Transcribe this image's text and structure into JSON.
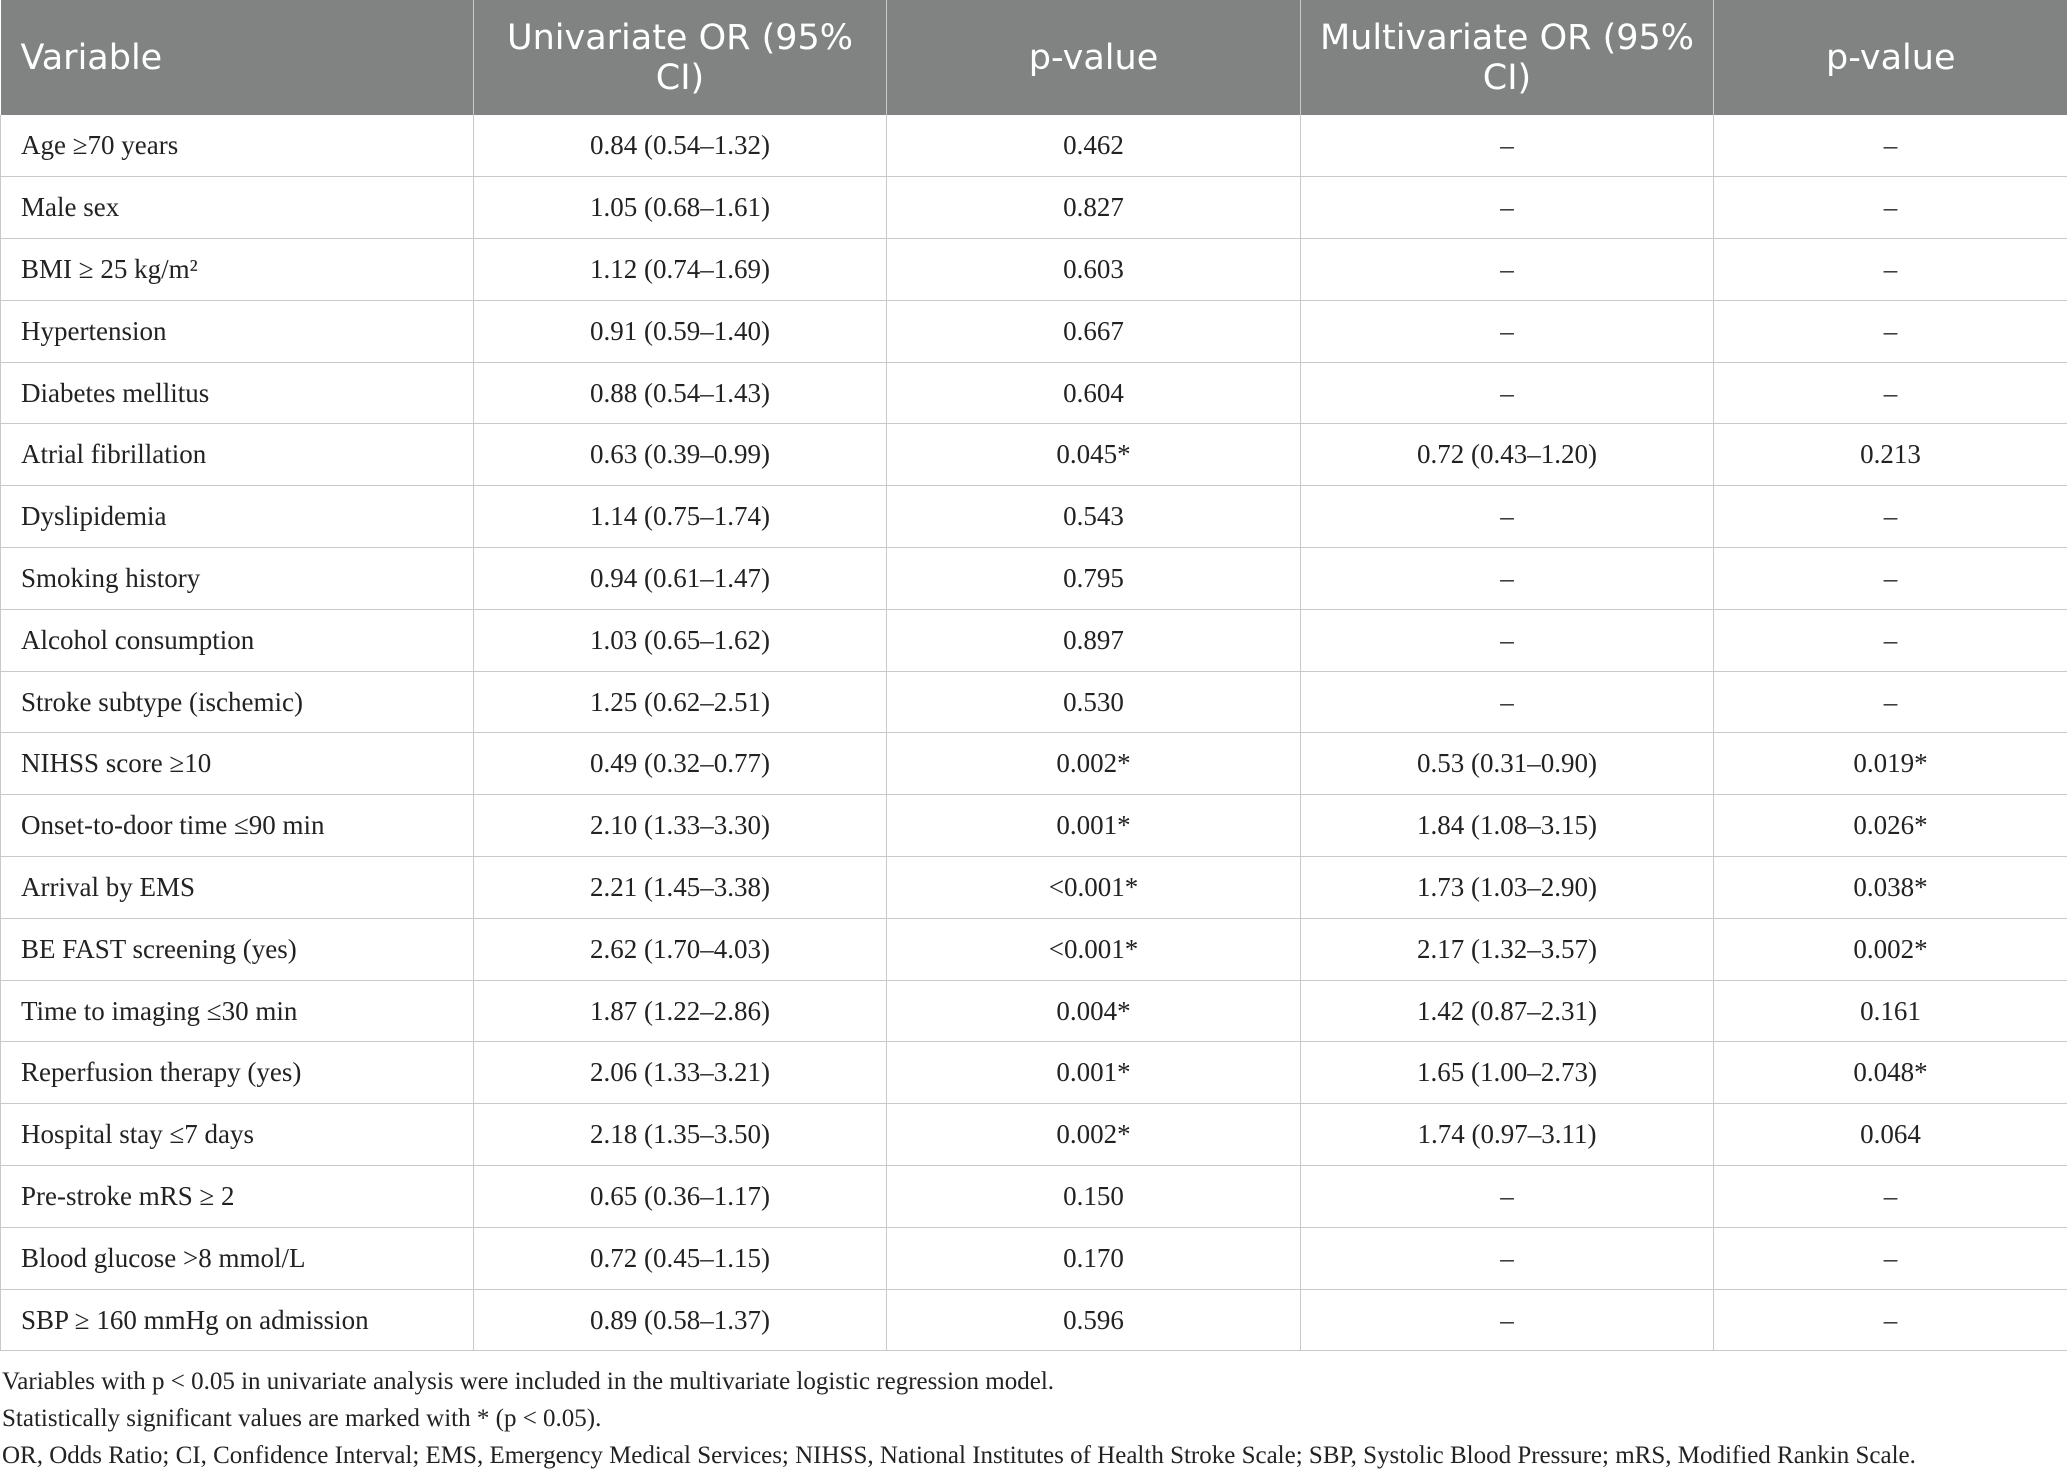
{
  "table": {
    "columns": [
      "Variable",
      "Univariate OR (95% CI)",
      "p-value",
      "Multivariate OR (95% CI)",
      "p-value"
    ],
    "rows": [
      [
        "Age ≥70 years",
        "0.84 (0.54–1.32)",
        "0.462",
        "–",
        "–"
      ],
      [
        "Male sex",
        "1.05 (0.68–1.61)",
        "0.827",
        "–",
        "–"
      ],
      [
        "BMI ≥ 25 kg/m²",
        "1.12 (0.74–1.69)",
        "0.603",
        "–",
        "–"
      ],
      [
        "Hypertension",
        "0.91 (0.59–1.40)",
        "0.667",
        "–",
        "–"
      ],
      [
        "Diabetes mellitus",
        "0.88 (0.54–1.43)",
        "0.604",
        "–",
        "–"
      ],
      [
        "Atrial fibrillation",
        "0.63 (0.39–0.99)",
        "0.045*",
        "0.72 (0.43–1.20)",
        "0.213"
      ],
      [
        "Dyslipidemia",
        "1.14 (0.75–1.74)",
        "0.543",
        "–",
        "–"
      ],
      [
        "Smoking history",
        "0.94 (0.61–1.47)",
        "0.795",
        "–",
        "–"
      ],
      [
        "Alcohol consumption",
        "1.03 (0.65–1.62)",
        "0.897",
        "–",
        "–"
      ],
      [
        "Stroke subtype (ischemic)",
        "1.25 (0.62–2.51)",
        "0.530",
        "–",
        "–"
      ],
      [
        "NIHSS score ≥10",
        "0.49 (0.32–0.77)",
        "0.002*",
        "0.53 (0.31–0.90)",
        "0.019*"
      ],
      [
        "Onset-to-door time ≤90 min",
        "2.10 (1.33–3.30)",
        "0.001*",
        "1.84 (1.08–3.15)",
        "0.026*"
      ],
      [
        "Arrival by EMS",
        "2.21 (1.45–3.38)",
        "<0.001*",
        "1.73 (1.03–2.90)",
        "0.038*"
      ],
      [
        "BE FAST screening (yes)",
        "2.62 (1.70–4.03)",
        "<0.001*",
        "2.17 (1.32–3.57)",
        "0.002*"
      ],
      [
        "Time to imaging ≤30 min",
        "1.87 (1.22–2.86)",
        "0.004*",
        "1.42 (0.87–2.31)",
        "0.161"
      ],
      [
        "Reperfusion therapy (yes)",
        "2.06 (1.33–3.21)",
        "0.001*",
        "1.65 (1.00–2.73)",
        "0.048*"
      ],
      [
        "Hospital stay ≤7 days",
        "2.18 (1.35–3.50)",
        "0.002*",
        "1.74 (0.97–3.11)",
        "0.064"
      ],
      [
        "Pre-stroke mRS ≥ 2",
        "0.65 (0.36–1.17)",
        "0.150",
        "–",
        "–"
      ],
      [
        "Blood glucose >8 mmol/L",
        "0.72 (0.45–1.15)",
        "0.170",
        "–",
        "–"
      ],
      [
        "SBP ≥ 160 mmHg on admission",
        "0.89 (0.58–1.37)",
        "0.596",
        "–",
        "–"
      ]
    ]
  },
  "footnotes": [
    "Variables with p < 0.05 in univariate analysis were included in the multivariate logistic regression model.",
    "Statistically significant values are marked with * (p < 0.05).",
    "OR, Odds Ratio; CI, Confidence Interval; EMS, Emergency Medical Services; NIHSS, National Institutes of Health Stroke Scale; SBP, Systolic Blood Pressure; mRS, Modified Rankin Scale."
  ]
}
